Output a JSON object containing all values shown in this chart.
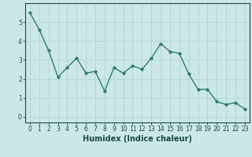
{
  "x": [
    0,
    1,
    2,
    3,
    4,
    5,
    6,
    7,
    8,
    9,
    10,
    11,
    12,
    13,
    14,
    15,
    16,
    17,
    18,
    19,
    20,
    21,
    22,
    23
  ],
  "y": [
    5.5,
    4.6,
    3.5,
    2.1,
    2.6,
    3.1,
    2.3,
    2.4,
    1.35,
    2.6,
    2.3,
    2.7,
    2.5,
    3.1,
    3.85,
    3.45,
    3.35,
    2.25,
    1.45,
    1.45,
    0.8,
    0.65,
    0.75,
    0.4
  ],
  "xlabel": "Humidex (Indice chaleur)",
  "xlim": [
    -0.5,
    23.5
  ],
  "ylim": [
    -0.3,
    6.0
  ],
  "yticks": [
    0,
    1,
    2,
    3,
    4,
    5
  ],
  "xticks": [
    0,
    1,
    2,
    3,
    4,
    5,
    6,
    7,
    8,
    9,
    10,
    11,
    12,
    13,
    14,
    15,
    16,
    17,
    18,
    19,
    20,
    21,
    22,
    23
  ],
  "line_color": "#2d7d6e",
  "marker": "D",
  "marker_size": 2.2,
  "bg_color": "#cce8e6",
  "grid_color": "#afd4d0",
  "axis_bg": "#cce8e6",
  "font_color": "#1a4a45",
  "xlabel_fontsize": 7,
  "tick_fontsize": 5.5,
  "line_width": 1.0
}
